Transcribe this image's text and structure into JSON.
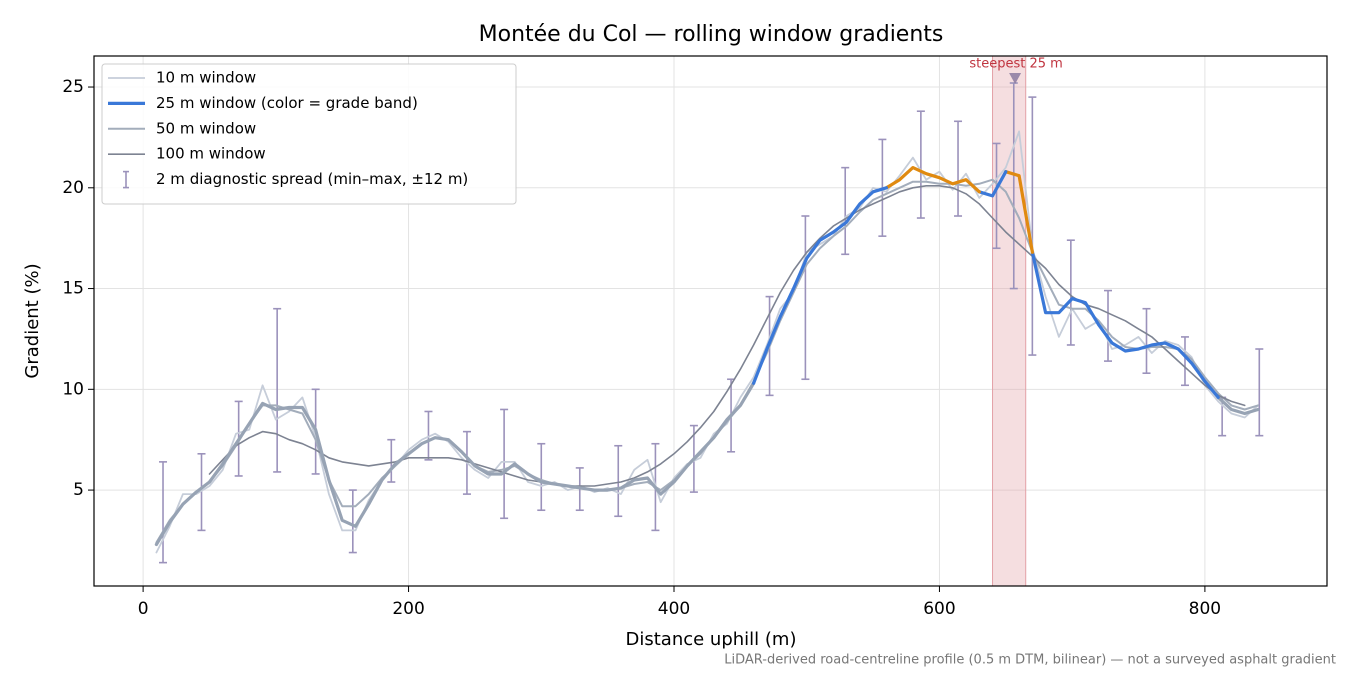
{
  "chart_data": {
    "type": "line",
    "title": "Montée du Col — rolling window gradients",
    "xlabel": "Distance uphill (m)",
    "ylabel": "Gradient (%)",
    "footnote": "LiDAR-derived road-centreline profile (0.5 m DTM, bilinear) — not a surveyed asphalt gradient",
    "xlim": [
      -37,
      892
    ],
    "ylim": [
      0.24,
      26.54
    ],
    "xticks": [
      0,
      200,
      400,
      600,
      800
    ],
    "yticks": [
      5,
      10,
      15,
      20,
      25
    ],
    "grid": true,
    "legend": "upper left",
    "x": [
      10,
      20,
      30,
      40,
      50,
      60,
      70,
      80,
      90,
      100,
      110,
      120,
      130,
      140,
      150,
      160,
      170,
      180,
      190,
      200,
      210,
      220,
      230,
      240,
      250,
      260,
      270,
      280,
      290,
      300,
      310,
      320,
      330,
      340,
      350,
      360,
      370,
      380,
      390,
      400,
      410,
      420,
      430,
      440,
      450,
      460,
      470,
      480,
      490,
      500,
      510,
      520,
      530,
      540,
      550,
      560,
      570,
      580,
      590,
      600,
      610,
      620,
      630,
      640,
      650,
      660,
      670,
      680,
      690,
      700,
      710,
      720,
      730,
      740,
      750,
      760,
      770,
      780,
      790,
      800,
      810,
      820,
      830,
      840
    ],
    "series": [
      {
        "name": "10 m window",
        "color": "#c6cdd9",
        "linewidth": 1.8,
        "values": [
          1.9,
          3.2,
          4.8,
          4.8,
          5.2,
          6.0,
          7.8,
          8.0,
          10.2,
          8.5,
          8.9,
          9.6,
          7.6,
          4.8,
          3.0,
          3.0,
          4.5,
          5.5,
          6.2,
          7.0,
          7.5,
          7.8,
          7.4,
          6.6,
          6.0,
          5.6,
          6.4,
          6.4,
          5.4,
          5.2,
          5.4,
          5.0,
          5.2,
          4.9,
          5.1,
          4.8,
          6.0,
          6.5,
          4.4,
          5.6,
          6.3,
          6.6,
          7.8,
          8.3,
          9.6,
          10.6,
          12.2,
          14.0,
          14.8,
          16.8,
          17.2,
          17.6,
          18.6,
          19.0,
          20.0,
          19.8,
          20.6,
          21.5,
          20.4,
          20.8,
          19.9,
          20.7,
          19.5,
          20.2,
          21.0,
          22.8,
          17.0,
          14.6,
          12.6,
          14.0,
          13.0,
          13.4,
          12.0,
          12.2,
          12.6,
          11.8,
          12.4,
          12.2,
          11.6,
          10.2,
          9.4,
          8.8,
          8.6,
          9.2
        ]
      },
      {
        "name": "25 m window (color = grade band)",
        "color": "#97a3b4",
        "linewidth": 3.2,
        "bands": [
          {
            "from": 10,
            "color": "#3a78d8"
          },
          {
            "from": 20,
            "color": "#e08a10"
          }
        ],
        "values": [
          2.3,
          3.4,
          4.3,
          4.9,
          5.4,
          6.3,
          7.3,
          8.3,
          9.3,
          9.0,
          9.1,
          9.1,
          8.0,
          5.5,
          3.5,
          3.2,
          4.3,
          5.5,
          6.3,
          6.8,
          7.3,
          7.6,
          7.5,
          6.9,
          6.2,
          5.8,
          5.8,
          6.3,
          5.8,
          5.4,
          5.3,
          5.2,
          5.1,
          5.0,
          5.0,
          5.1,
          5.5,
          5.6,
          4.8,
          5.4,
          6.2,
          6.9,
          7.6,
          8.5,
          9.2,
          10.3,
          12.0,
          13.6,
          15.0,
          16.5,
          17.4,
          17.8,
          18.3,
          19.2,
          19.8,
          20.0,
          20.4,
          21.0,
          20.7,
          20.5,
          20.2,
          20.4,
          19.8,
          19.6,
          20.8,
          20.6,
          16.8,
          13.8,
          13.8,
          14.5,
          14.3,
          13.2,
          12.3,
          11.9,
          12.0,
          12.2,
          12.3,
          12.0,
          11.3,
          10.4,
          9.6,
          9.0,
          8.8,
          9.0
        ]
      },
      {
        "name": "50 m window",
        "color": "#a3adbb",
        "linewidth": 2,
        "values": [
          2.4,
          3.5,
          4.3,
          4.9,
          5.4,
          6.2,
          7.2,
          8.3,
          9.2,
          9.2,
          9.0,
          8.8,
          7.5,
          5.5,
          4.2,
          4.2,
          4.8,
          5.6,
          6.2,
          6.8,
          7.3,
          7.6,
          7.5,
          6.9,
          6.2,
          5.9,
          6.0,
          6.2,
          5.8,
          5.5,
          5.3,
          5.2,
          5.1,
          5.0,
          5.0,
          5.1,
          5.3,
          5.4,
          5.0,
          5.5,
          6.2,
          6.8,
          7.6,
          8.4,
          9.2,
          10.4,
          11.8,
          13.4,
          14.8,
          16.2,
          17.0,
          17.6,
          18.1,
          18.8,
          19.4,
          19.7,
          20.0,
          20.3,
          20.3,
          20.2,
          20.2,
          20.1,
          20.2,
          20.4,
          19.8,
          18.5,
          16.8,
          15.5,
          14.2,
          14.0,
          14.0,
          13.4,
          12.6,
          12.1,
          12.0,
          12.1,
          12.1,
          12.0,
          11.5,
          10.6,
          9.8,
          9.2,
          9.0,
          9.2
        ]
      },
      {
        "name": "100 m window",
        "color": "#7d8392",
        "linewidth": 1.6,
        "values": [
          null,
          null,
          null,
          null,
          5.8,
          6.5,
          7.2,
          7.6,
          7.9,
          7.8,
          7.5,
          7.3,
          7.0,
          6.6,
          6.4,
          6.3,
          6.2,
          6.3,
          6.4,
          6.6,
          6.6,
          6.6,
          6.6,
          6.5,
          6.3,
          6.1,
          5.9,
          5.7,
          5.5,
          5.4,
          5.3,
          5.2,
          5.2,
          5.2,
          5.3,
          5.4,
          5.6,
          5.9,
          6.3,
          6.8,
          7.4,
          8.1,
          8.9,
          9.9,
          11.0,
          12.2,
          13.5,
          14.8,
          15.9,
          16.8,
          17.5,
          18.1,
          18.5,
          18.9,
          19.2,
          19.5,
          19.8,
          20.0,
          20.1,
          20.1,
          20.0,
          19.7,
          19.2,
          18.5,
          17.8,
          17.2,
          16.6,
          16.0,
          15.2,
          14.6,
          14.2,
          14.0,
          13.7,
          13.4,
          13.0,
          12.6,
          12.0,
          11.4,
          10.8,
          10.2,
          9.7,
          9.4,
          9.2,
          null
        ]
      }
    ],
    "errorbars": {
      "name": "2 m diagnostic spread (min–max, ±12 m)",
      "color": "#9b92bb",
      "x": [
        15,
        44,
        72,
        101,
        130,
        158,
        187,
        215,
        244,
        272,
        300,
        329,
        358,
        386,
        415,
        443,
        472,
        499,
        529,
        557,
        586,
        614,
        643,
        656,
        670,
        699,
        727,
        756,
        785,
        813,
        841
      ],
      "low": [
        1.4,
        3.0,
        5.7,
        5.9,
        5.8,
        1.9,
        5.4,
        6.5,
        4.8,
        3.6,
        4.0,
        4.0,
        3.7,
        3.0,
        4.9,
        6.9,
        9.7,
        10.5,
        16.7,
        17.6,
        18.5,
        18.6,
        17.0,
        15.0,
        11.7,
        12.2,
        11.4,
        10.8,
        10.2,
        7.7,
        7.7
      ],
      "high": [
        6.4,
        6.8,
        9.4,
        14.0,
        10.0,
        5.0,
        7.5,
        8.9,
        7.9,
        9.0,
        7.3,
        6.1,
        7.2,
        7.3,
        8.2,
        10.5,
        14.6,
        18.6,
        21.0,
        22.4,
        23.8,
        23.3,
        22.2,
        25.2,
        24.5,
        17.4,
        14.9,
        14.0,
        12.6,
        9.6,
        12.0
      ]
    },
    "highlight": {
      "label": "steepest 25 m",
      "xlim": [
        640,
        665
      ],
      "color": "#e3a0a6",
      "label_color": "#c0343f",
      "marker_x": 657,
      "marker_y": 25.4,
      "marker_color": "#8a7aa0"
    }
  }
}
